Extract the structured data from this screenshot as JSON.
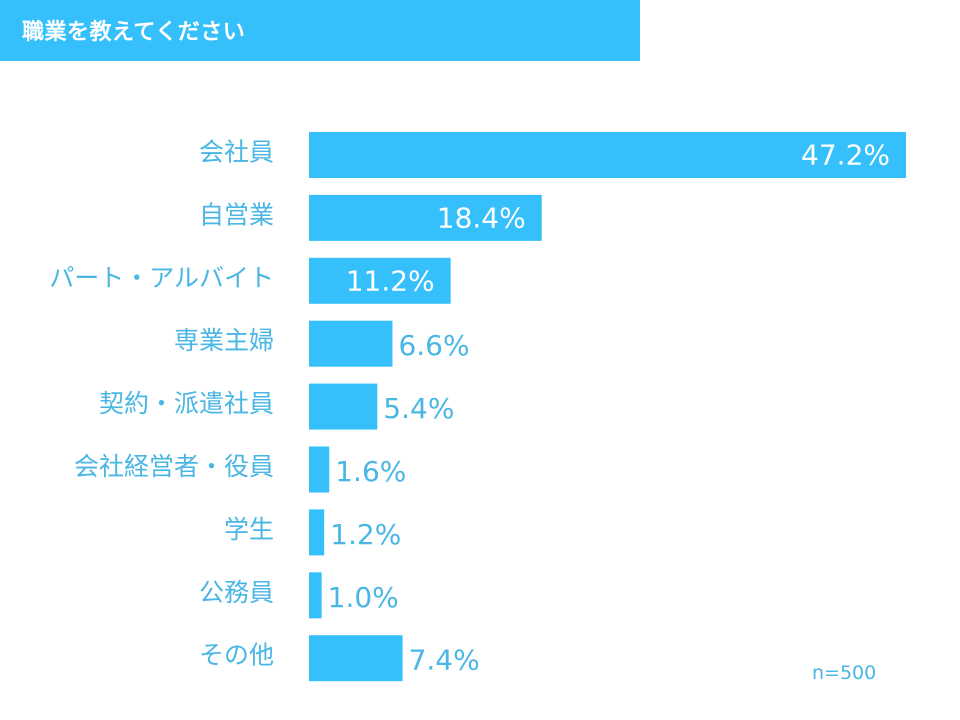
{
  "title": "職業を教えてください",
  "sample_note": "n=500",
  "colors": {
    "banner": "#36c0fb",
    "bar": "#36c0fb",
    "label": "#4ab6e4",
    "value_inside": "#ffffff",
    "value_outside": "#4ab6e4"
  },
  "chart_data": {
    "type": "bar",
    "orientation": "horizontal",
    "unit": "%",
    "categories": [
      "会社員",
      "自営業",
      "パート・アルバイト",
      "専業主婦",
      "契約・派遣社員",
      "会社経営者・役員",
      "学生",
      "公務員",
      "その他"
    ],
    "values": [
      47.2,
      18.4,
      11.2,
      6.6,
      5.4,
      1.6,
      1.2,
      1.0,
      7.4
    ],
    "value_labels": [
      "47.2%",
      "18.4%",
      "11.2%",
      "6.6%",
      "5.4%",
      "1.6%",
      "1.2%",
      "1.0%",
      "7.4%"
    ],
    "label_inside": [
      true,
      true,
      true,
      false,
      false,
      false,
      false,
      false,
      false
    ],
    "xlim": [
      0,
      47.2
    ],
    "grid": false,
    "legend": "none"
  }
}
